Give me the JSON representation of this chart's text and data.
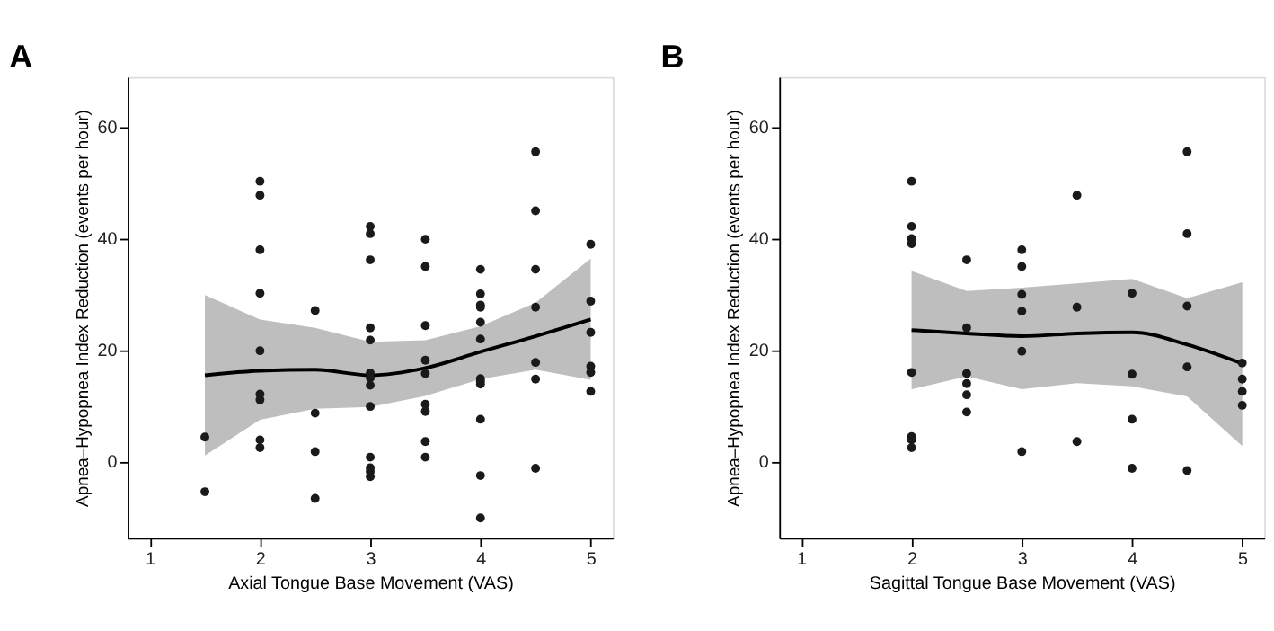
{
  "chart_data": [
    {
      "type": "scatter",
      "title": "A",
      "xlabel": "Axial Tongue Base Movement (VAS)",
      "ylabel": "Apnea–Hypopnea Index Reduction (events per hour)",
      "xlim": [
        0.8,
        5.2
      ],
      "ylim": [
        -13.7,
        69
      ],
      "xticks": [
        1,
        2,
        3,
        4,
        5
      ],
      "yticks": [
        0,
        20,
        40,
        60
      ],
      "grid": false,
      "series": [
        {
          "type": "line",
          "color": "#000000",
          "x": [
            1.5,
            2,
            2.5,
            3,
            3.5,
            4,
            4.5,
            5
          ],
          "values": [
            15.5,
            16.3,
            16.5,
            15.5,
            16.8,
            19.7,
            22.5,
            25.5
          ],
          "lower": [
            1.1,
            7.5,
            9.5,
            9.8,
            11.8,
            14.8,
            16.5,
            14.7
          ],
          "upper": [
            29.9,
            25.5,
            24,
            21.5,
            21.8,
            24.3,
            28.5,
            36.4
          ]
        },
        {
          "marker": "circle",
          "color": "#1a1a1a",
          "x": [
            1.5,
            1.5,
            2,
            2,
            2,
            2,
            2,
            2,
            2,
            2,
            2,
            2.5,
            2.5,
            2.5,
            2.5,
            3,
            3,
            3,
            3,
            3,
            3,
            3,
            3,
            3,
            3,
            3,
            3,
            3,
            3.5,
            3.5,
            3.5,
            3.5,
            3.5,
            3.5,
            3.5,
            3.5,
            3.5,
            4,
            4,
            4,
            4,
            4,
            4,
            4,
            4,
            4,
            4,
            4,
            4,
            4.5,
            4.5,
            4.5,
            4.5,
            4.5,
            4.5,
            4.5,
            5,
            5,
            5,
            5,
            5,
            5
          ],
          "values": [
            4.4,
            -5.4,
            50.3,
            47.8,
            38,
            30.2,
            19.9,
            12.1,
            11.1,
            3.9,
            2.5,
            27.1,
            8.7,
            1.8,
            -6.6,
            42.2,
            40.9,
            36.2,
            24,
            21.8,
            15.9,
            15,
            13.7,
            9.9,
            0.8,
            -1.1,
            -1.8,
            -2.7,
            39.9,
            35,
            24.4,
            18.2,
            15.8,
            10.3,
            9,
            3.6,
            0.8,
            34.5,
            30.1,
            28.1,
            27.7,
            25,
            22,
            14.9,
            14.4,
            13.9,
            7.6,
            -2.5,
            -10.1,
            55.6,
            45,
            34.5,
            27.7,
            17.8,
            14.8,
            -1.2,
            39,
            28.8,
            23.2,
            17.1,
            16,
            12.6
          ]
        }
      ]
    },
    {
      "type": "scatter",
      "title": "B",
      "xlabel": "Sagittal Tongue Base Movement (VAS)",
      "ylabel": "Apnea–Hypopnea Index Reduction (events per hour)",
      "xlim": [
        0.8,
        5.2
      ],
      "ylim": [
        -13.7,
        69
      ],
      "xticks": [
        1,
        2,
        3,
        4,
        5
      ],
      "yticks": [
        0,
        20,
        40,
        60
      ],
      "grid": false,
      "series": [
        {
          "type": "line",
          "color": "#000000",
          "x": [
            2,
            2.5,
            3,
            3.5,
            4,
            4.5,
            5
          ],
          "values": [
            23.6,
            23,
            22.5,
            23,
            23.2,
            21,
            17.6
          ],
          "lower": [
            13,
            15.3,
            13,
            14.1,
            13.5,
            11.7,
            2.8
          ],
          "upper": [
            34.2,
            30.6,
            31.2,
            32,
            32.8,
            29.3,
            32.2
          ]
        },
        {
          "marker": "circle",
          "color": "#1a1a1a",
          "x": [
            2,
            2,
            2,
            2,
            2,
            2,
            2,
            2,
            2.5,
            2.5,
            2.5,
            2.5,
            2.5,
            2.5,
            3,
            3,
            3,
            3,
            3,
            3,
            3.5,
            3.5,
            3.5,
            4,
            4,
            4,
            4,
            4.5,
            4.5,
            4.5,
            4.5,
            4.5,
            5,
            5,
            5,
            5
          ],
          "values": [
            50.3,
            42.2,
            40,
            39.1,
            16,
            4.5,
            3.9,
            2.5,
            36.2,
            24,
            15.8,
            14,
            12,
            8.9,
            38,
            35,
            30,
            27,
            19.8,
            1.8,
            47.8,
            27.7,
            3.6,
            30.2,
            15.7,
            7.6,
            -1.2,
            55.6,
            40.9,
            27.9,
            17,
            -1.6,
            17.7,
            14.8,
            12.6,
            10.1
          ]
        }
      ]
    }
  ]
}
